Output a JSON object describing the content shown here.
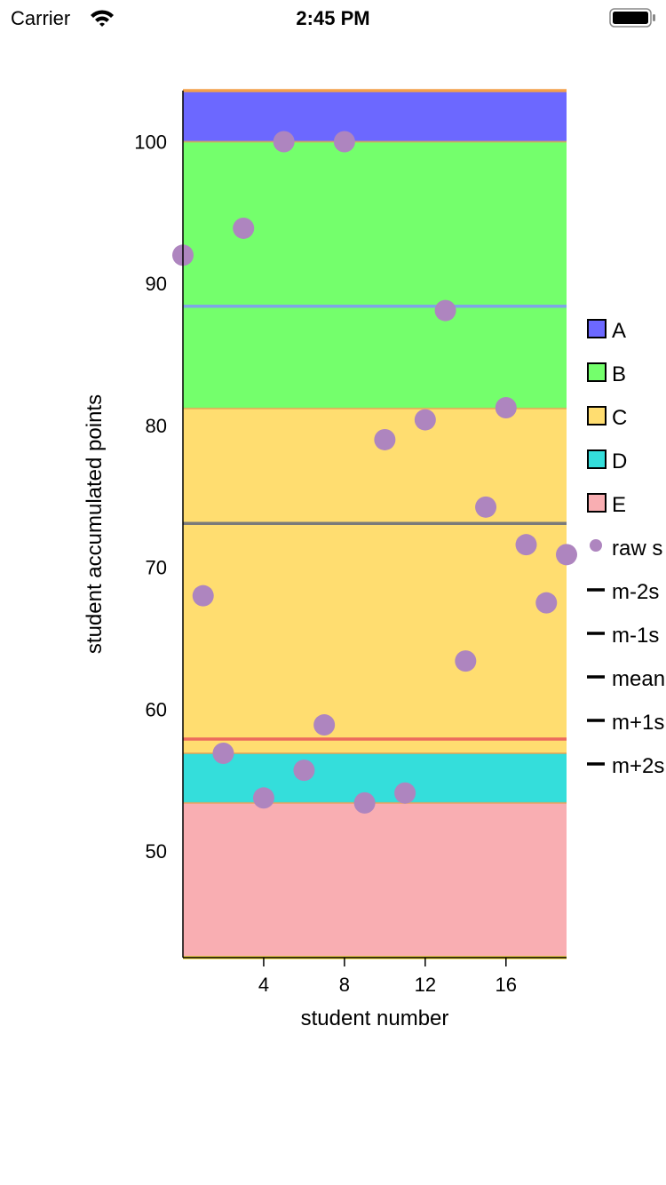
{
  "status_bar": {
    "carrier": "Carrier",
    "time": "2:45 PM",
    "icons": [
      "wifi-icon",
      "battery-icon"
    ]
  },
  "chart_data": {
    "type": "scatter",
    "xlabel": "student number",
    "ylabel": "student accumulated points",
    "xlim": [
      0,
      19
    ],
    "ylim": [
      42.5,
      103.6
    ],
    "xticks": [
      4,
      8,
      12,
      16
    ],
    "yticks": [
      50,
      60,
      70,
      80,
      90,
      100
    ],
    "grid": false,
    "legend_placement": "right",
    "bands": [
      {
        "name": "A",
        "from": 100,
        "to": 103.6,
        "color": "#6c68ff"
      },
      {
        "name": "B",
        "from": 81.2,
        "to": 100,
        "color": "#74ff6c"
      },
      {
        "name": "C",
        "from": 56.9,
        "to": 81.2,
        "color": "#ffdd70"
      },
      {
        "name": "D",
        "from": 53.4,
        "to": 56.9,
        "color": "#34dedb"
      },
      {
        "name": "E",
        "from": 42.5,
        "to": 53.4,
        "color": "#f9aeb2"
      }
    ],
    "series": [
      {
        "name": "raw s",
        "color": "#ae85bf",
        "x": [
          0,
          1,
          2,
          3,
          4,
          5,
          6,
          7,
          8,
          9,
          10,
          11,
          12,
          13,
          14,
          15,
          16,
          17,
          18,
          19
        ],
        "y": [
          92.0,
          68.0,
          56.9,
          93.9,
          53.75,
          100,
          55.7,
          58.9,
          100,
          53.4,
          79.0,
          54.1,
          80.4,
          88.1,
          63.4,
          74.25,
          81.25,
          71.6,
          67.5,
          70.9
        ]
      }
    ],
    "lines": [
      {
        "name": "m-2s",
        "y": 42.5,
        "color": "#e8d030"
      },
      {
        "name": "m-1s",
        "y": 57.9,
        "color": "#ec6a5c"
      },
      {
        "name": "mean",
        "y": 73.1,
        "color": "#7a7a7a"
      },
      {
        "name": "m+1s",
        "y": 88.4,
        "color": "#7ea6e6"
      },
      {
        "name": "m+2s",
        "y": 103.6,
        "color": "#f4a04a"
      }
    ]
  }
}
